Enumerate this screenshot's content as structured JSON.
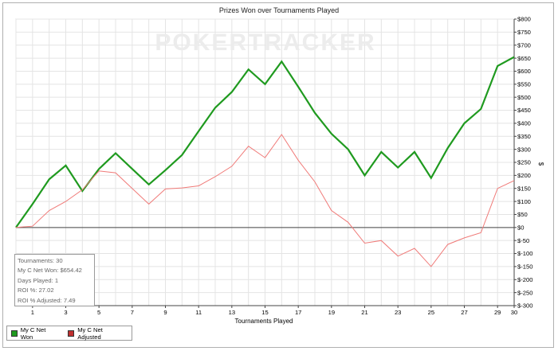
{
  "chart_data": {
    "type": "line",
    "title": "Prizes Won over Tournaments Played",
    "xlabel": "Tournaments Played",
    "ylabel": "$",
    "watermark": "POKERTRACKER",
    "x": [
      0,
      1,
      2,
      3,
      4,
      5,
      6,
      7,
      8,
      9,
      10,
      11,
      12,
      13,
      14,
      15,
      16,
      17,
      18,
      19,
      20,
      21,
      22,
      23,
      24,
      25,
      26,
      27,
      28,
      29,
      30
    ],
    "xticks": [
      1,
      3,
      5,
      7,
      9,
      11,
      13,
      15,
      17,
      19,
      21,
      23,
      25,
      27,
      29,
      30
    ],
    "xticks_top": [
      2,
      4,
      6,
      8,
      10,
      12,
      14,
      16,
      18,
      20,
      22,
      24,
      26,
      28,
      30
    ],
    "xlim": [
      0,
      30
    ],
    "ylim": [
      -300,
      800
    ],
    "yticks": [
      -300,
      -250,
      -200,
      -150,
      -100,
      -50,
      0,
      50,
      100,
      150,
      200,
      250,
      300,
      350,
      400,
      450,
      500,
      550,
      600,
      650,
      700,
      750,
      800
    ],
    "ytick_labels": [
      "$-300",
      "$-250",
      "$-200",
      "$-150",
      "$-100",
      "$-50",
      "$0",
      "$50",
      "$100",
      "$150",
      "$200",
      "$250",
      "$300",
      "$350",
      "$400",
      "$450",
      "$500",
      "$550",
      "$600",
      "$650",
      "$700",
      "$750",
      "$800"
    ],
    "grid": true,
    "legend_position": "bottom-left",
    "series": [
      {
        "name": "My C Net Won",
        "color": "#1f9a1f",
        "values": [
          0,
          90,
          185,
          238,
          140,
          225,
          285,
          225,
          165,
          220,
          278,
          370,
          460,
          520,
          607,
          550,
          637,
          540,
          440,
          360,
          300,
          200,
          290,
          230,
          290,
          190,
          305,
          400,
          455,
          620,
          654.42
        ]
      },
      {
        "name": "My C Net Adjusted",
        "color": "#f07a78",
        "values": [
          0,
          5,
          65,
          100,
          145,
          217,
          210,
          150,
          90,
          148,
          152,
          160,
          195,
          235,
          312,
          268,
          357,
          258,
          175,
          65,
          20,
          -60,
          -50,
          -110,
          -80,
          -150,
          -65,
          -40,
          -20,
          150,
          180
        ]
      }
    ]
  },
  "stats": {
    "tournaments": "Tournaments: 30",
    "net_won": "My C Net Won: $654.42",
    "days_played": "Days Played: 1",
    "roi": "ROI %: 27.02",
    "roi_adjusted": "ROI % Adjusted: 7.49"
  },
  "legend": {
    "item1": "My C Net Won",
    "item2": "My C Net Adjusted",
    "color1": "#1f9a1f",
    "color2": "#c03030"
  }
}
